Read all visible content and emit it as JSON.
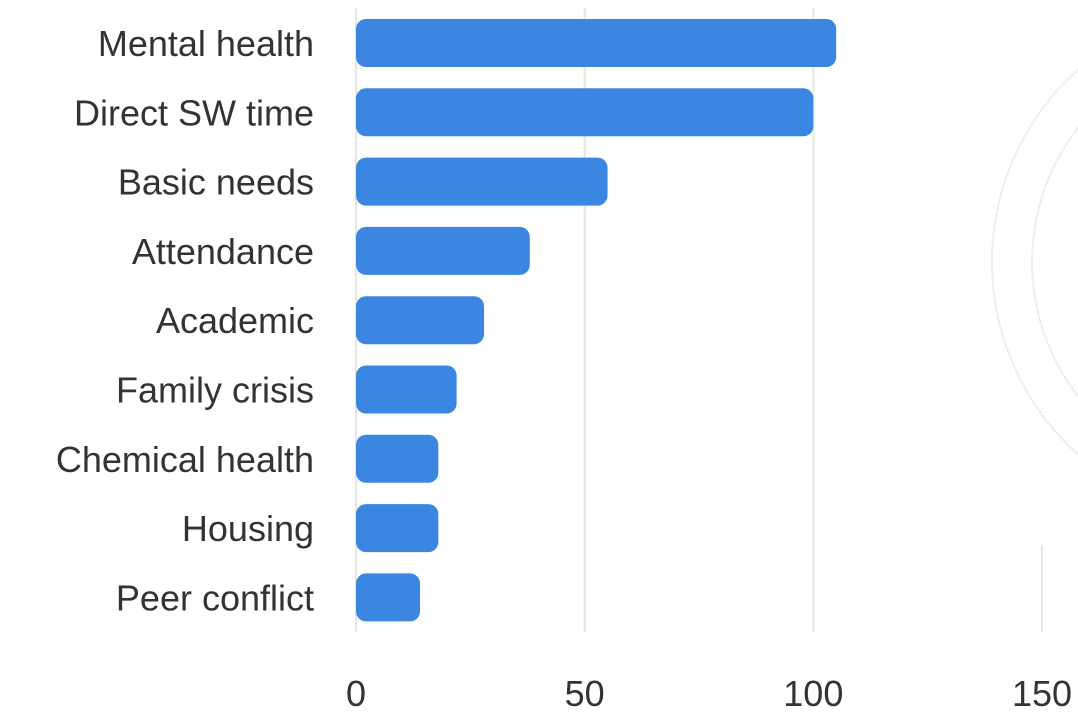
{
  "chart_data": {
    "type": "bar",
    "orientation": "horizontal",
    "title": "",
    "xlabel": "",
    "ylabel": "",
    "categories": [
      "Mental health",
      "Direct SW time",
      "Basic needs",
      "Attendance",
      "Academic",
      "Family crisis",
      "Chemical health",
      "Housing",
      "Peer conflict"
    ],
    "values": [
      105,
      100,
      55,
      38,
      28,
      22,
      18,
      18,
      14
    ],
    "xlim": [
      0,
      150
    ],
    "xticks": [
      "0",
      "50",
      "100",
      "150"
    ],
    "grid": "vertical",
    "bar_color": "#3a86e0"
  }
}
